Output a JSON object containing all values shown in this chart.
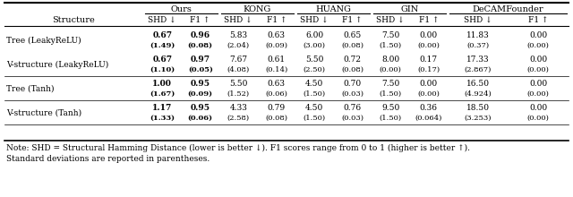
{
  "col_groups": [
    "Ours",
    "KONG",
    "HUANG",
    "GIN",
    "DeCAMFounder"
  ],
  "col_headers": [
    "SHD ↓",
    "F1 ↑",
    "SHD ↓",
    "F1 ↑",
    "SHD ↓",
    "F1 ↑",
    "SHD ↓",
    "F1 ↑",
    "SHD ↓",
    "F1 ↑"
  ],
  "row_labels": [
    "Tree (LeakyReLU)",
    "V-structure (LeakyReLU)",
    "Tree (Tanh)",
    "V-structure (Tanh)"
  ],
  "data": [
    [
      [
        "0.67",
        "0.96"
      ],
      [
        "5.83",
        "0.63"
      ],
      [
        "6.00",
        "0.65"
      ],
      [
        "7.50",
        "0.00"
      ],
      [
        "11.83",
        "0.00"
      ]
    ],
    [
      [
        "0.67",
        "0.97"
      ],
      [
        "7.67",
        "0.61"
      ],
      [
        "5.50",
        "0.72"
      ],
      [
        "8.00",
        "0.17"
      ],
      [
        "17.33",
        "0.00"
      ]
    ],
    [
      [
        "1.00",
        "0.95"
      ],
      [
        "5.50",
        "0.63"
      ],
      [
        "4.50",
        "0.70"
      ],
      [
        "7.50",
        "0.00"
      ],
      [
        "16.50",
        "0.00"
      ]
    ],
    [
      [
        "1.17",
        "0.95"
      ],
      [
        "4.33",
        "0.79"
      ],
      [
        "4.50",
        "0.76"
      ],
      [
        "9.50",
        "0.36"
      ],
      [
        "18.50",
        "0.00"
      ]
    ]
  ],
  "std_data": [
    [
      [
        "(1.49)",
        "(0.08)"
      ],
      [
        "(2.04)",
        "(0.09)"
      ],
      [
        "(3.00)",
        "(0.08)"
      ],
      [
        "(1.50)",
        "(0.00)"
      ],
      [
        "(0.37)",
        "(0.00)"
      ]
    ],
    [
      [
        "(1.10)",
        "(0.05)"
      ],
      [
        "(4.08)",
        "(0.14)"
      ],
      [
        "(2.50)",
        "(0.08)"
      ],
      [
        "(0.00)",
        "(0.17)"
      ],
      [
        "(2.867)",
        "(0.00)"
      ]
    ],
    [
      [
        "(1.67)",
        "(0.09)"
      ],
      [
        "(1.52)",
        "(0.06)"
      ],
      [
        "(1.50)",
        "(0.03)"
      ],
      [
        "(1.50)",
        "(0.00)"
      ],
      [
        "(4.924)",
        "(0.00)"
      ]
    ],
    [
      [
        "(1.33)",
        "(0.06)"
      ],
      [
        "(2.58)",
        "(0.08)"
      ],
      [
        "(1.50)",
        "(0.03)"
      ],
      [
        "(1.50)",
        "(0.064)"
      ],
      [
        "(3.253)",
        "(0.00)"
      ]
    ]
  ],
  "note_line1": "Note: SHD = Structural Hamming Distance (lower is better ↓). F1 scores range from 0 to 1 (higher is better ↑).",
  "note_line2": "Standard deviations are reported in parentheses.",
  "bg_color": "#ffffff",
  "text_color": "#000000",
  "fs_main": 7.0,
  "fs_small": 6.5,
  "fs_note": 6.5
}
